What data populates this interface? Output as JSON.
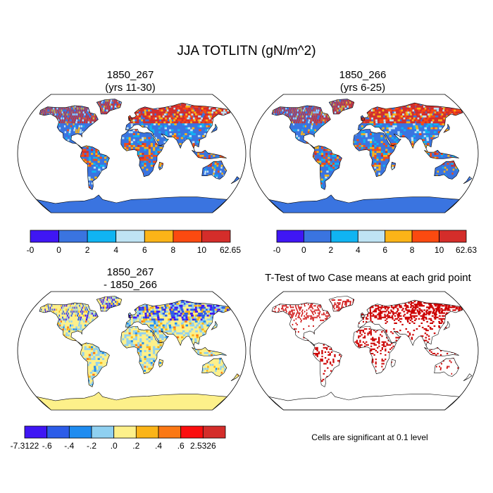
{
  "figure": {
    "title": "JJA TOTLITN (gN/m^2)",
    "significance_note": "Cells are significant at 0.1 level"
  },
  "chart_data": [
    {
      "type": "heatmap",
      "projection": "robinson",
      "title": "1850_267",
      "subtitle": "(yrs 11-30)",
      "colorbar": {
        "labels": [
          "-0",
          "0",
          "2",
          "4",
          "6",
          "8",
          "10",
          "62.65"
        ],
        "colors": [
          "#3f16f4",
          "#3a74e0",
          "#10b4f2",
          "#bfe3f3",
          "#fbb418",
          "#fb4a10",
          "#d42d2a"
        ]
      },
      "dominant_color": "#3a74e0",
      "features": [
        "high values (red) over Northern Europe, Siberia and Canada",
        "orange/yellow patches over tropics"
      ]
    },
    {
      "type": "heatmap",
      "projection": "robinson",
      "title": "1850_266",
      "subtitle": "(yrs 6-25)",
      "colorbar": {
        "labels": [
          "-0",
          "0",
          "2",
          "4",
          "6",
          "8",
          "10",
          "62.63"
        ],
        "colors": [
          "#3f16f4",
          "#3a74e0",
          "#10b4f2",
          "#bfe3f3",
          "#fbb418",
          "#fb4a10",
          "#d42d2a"
        ]
      },
      "dominant_color": "#3a74e0"
    },
    {
      "type": "heatmap",
      "projection": "robinson",
      "title": "1850_267",
      "subtitle": "- 1850_266",
      "colorbar": {
        "labels": [
          "-7.3122",
          "-.6",
          "-.4",
          "-.2",
          ".0",
          ".2",
          ".4",
          ".6",
          "2.5326"
        ],
        "colors": [
          "#3f16f4",
          "#2c5ce8",
          "#1f8cf0",
          "#8fd0f0",
          "#fdf08a",
          "#fbb418",
          "#fb7814",
          "#fb0e0e",
          "#d42d2a"
        ]
      },
      "dominant_color": "#fdf08a"
    },
    {
      "type": "heatmap",
      "projection": "robinson",
      "title": "T-Test of two Case means at each grid point",
      "subtitle": "",
      "significance_color": "#cc0000"
    }
  ]
}
